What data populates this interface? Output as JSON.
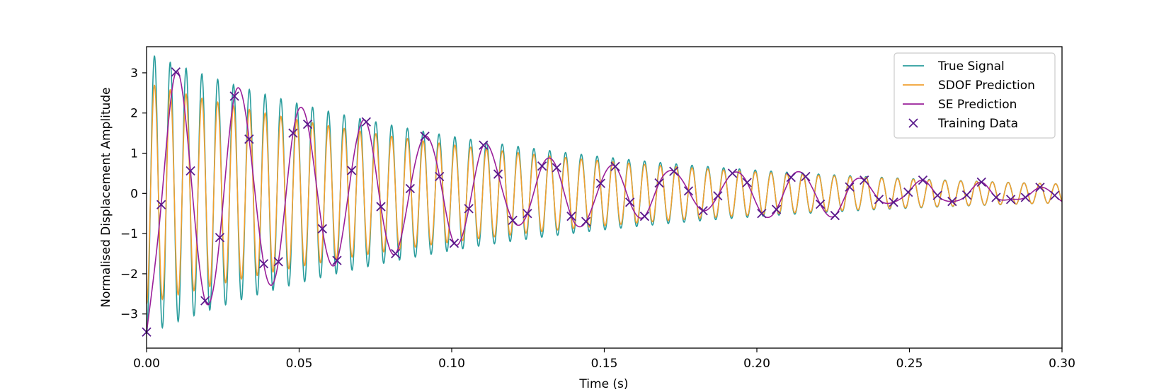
{
  "chart_data": {
    "type": "line",
    "title": "",
    "xlabel": "Time (s)",
    "ylabel": "Normalised Displacement Amplitude",
    "xlim": [
      0.0,
      0.3
    ],
    "ylim": [
      -3.85,
      3.65
    ],
    "x_ticks": [
      0.0,
      0.05,
      0.1,
      0.15,
      0.2,
      0.25,
      0.3
    ],
    "x_tick_labels": [
      "0.00",
      "0.05",
      "0.10",
      "0.15",
      "0.20",
      "0.25",
      "0.30"
    ],
    "y_ticks": [
      3,
      2,
      1,
      0,
      -1,
      -2,
      -3
    ],
    "y_tick_labels": [
      "3",
      "2",
      "1",
      "0",
      "−1",
      "−2",
      "−3"
    ],
    "grid": false,
    "legend_position": "top-right",
    "series": [
      {
        "name": "True Signal",
        "kind": "line",
        "color": "#2a9d9d",
        "model": {
          "form": "damped_cosine",
          "amplitude": 3.5,
          "decay_per_s": 9.0,
          "frequency_hz": 193.0,
          "phase": 3.14159
        }
      },
      {
        "name": "SDOF Prediction",
        "kind": "line",
        "color": "#f0a030",
        "model": {
          "form": "damped_cosine",
          "amplitude": 2.75,
          "decay_per_s": 8.2,
          "frequency_hz": 193.0,
          "phase": 3.14159
        }
      },
      {
        "name": "SE Prediction",
        "kind": "line",
        "color": "#9a1f9a",
        "model": {
          "form": "interpolation",
          "through": "Training Data"
        }
      },
      {
        "name": "Training Data",
        "kind": "scatter",
        "marker": "x",
        "color": "#5a1a8c",
        "points": [
          [
            0.0,
            -3.45
          ],
          [
            0.0048,
            -0.28
          ],
          [
            0.0096,
            3.02
          ],
          [
            0.0144,
            0.56
          ],
          [
            0.0192,
            -2.67
          ],
          [
            0.024,
            -1.1
          ],
          [
            0.0288,
            2.42
          ],
          [
            0.0336,
            1.35
          ],
          [
            0.0384,
            -1.75
          ],
          [
            0.0432,
            -1.7
          ],
          [
            0.048,
            1.5
          ],
          [
            0.0528,
            1.72
          ],
          [
            0.0576,
            -0.88
          ],
          [
            0.0624,
            -1.67
          ],
          [
            0.0672,
            0.57
          ],
          [
            0.072,
            1.78
          ],
          [
            0.0768,
            -0.33
          ],
          [
            0.0816,
            -1.5
          ],
          [
            0.0864,
            0.12
          ],
          [
            0.0912,
            1.42
          ],
          [
            0.096,
            0.42
          ],
          [
            0.1008,
            -1.24
          ],
          [
            0.1056,
            -0.38
          ],
          [
            0.1104,
            1.2
          ],
          [
            0.1152,
            0.48
          ],
          [
            0.12,
            -0.67
          ],
          [
            0.1248,
            -0.5
          ],
          [
            0.1296,
            0.68
          ],
          [
            0.1344,
            0.64
          ],
          [
            0.1392,
            -0.57
          ],
          [
            0.144,
            -0.7
          ],
          [
            0.1488,
            0.25
          ],
          [
            0.1536,
            0.67
          ],
          [
            0.1584,
            -0.22
          ],
          [
            0.1632,
            -0.57
          ],
          [
            0.168,
            0.26
          ],
          [
            0.1728,
            0.55
          ],
          [
            0.1776,
            0.06
          ],
          [
            0.1824,
            -0.43
          ],
          [
            0.1872,
            -0.06
          ],
          [
            0.192,
            0.5
          ],
          [
            0.1968,
            0.27
          ],
          [
            0.2016,
            -0.5
          ],
          [
            0.2064,
            -0.4
          ],
          [
            0.2112,
            0.4
          ],
          [
            0.216,
            0.42
          ],
          [
            0.2208,
            -0.27
          ],
          [
            0.2256,
            -0.55
          ],
          [
            0.2304,
            0.16
          ],
          [
            0.2352,
            0.33
          ],
          [
            0.24,
            -0.15
          ],
          [
            0.2448,
            -0.22
          ],
          [
            0.2496,
            0.03
          ],
          [
            0.2544,
            0.33
          ],
          [
            0.2592,
            -0.05
          ],
          [
            0.264,
            -0.2
          ],
          [
            0.2688,
            -0.04
          ],
          [
            0.2736,
            0.28
          ],
          [
            0.2784,
            -0.1
          ],
          [
            0.2832,
            -0.15
          ],
          [
            0.288,
            -0.1
          ],
          [
            0.2928,
            0.15
          ],
          [
            0.2976,
            -0.05
          ]
        ]
      }
    ]
  }
}
